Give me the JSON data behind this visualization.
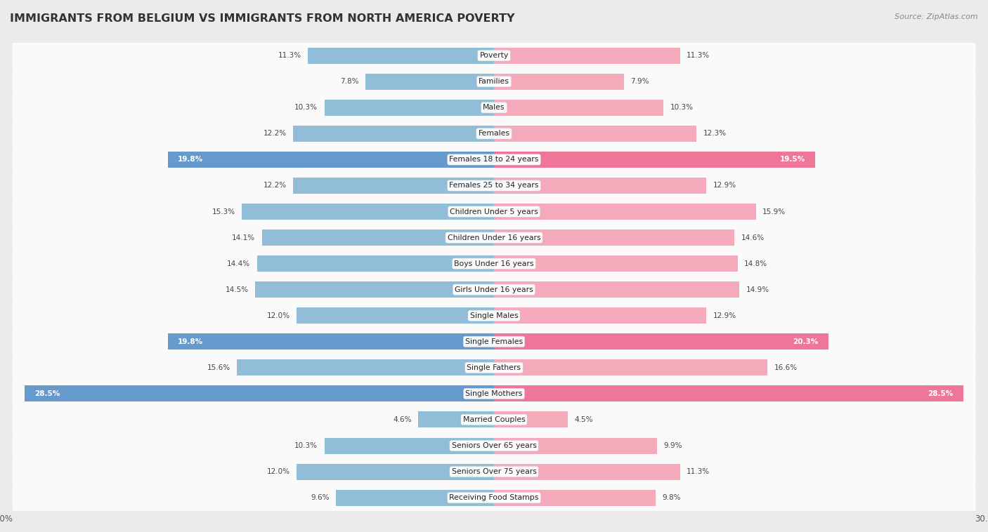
{
  "title": "IMMIGRANTS FROM BELGIUM VS IMMIGRANTS FROM NORTH AMERICA POVERTY",
  "source": "Source: ZipAtlas.com",
  "categories": [
    "Poverty",
    "Families",
    "Males",
    "Females",
    "Females 18 to 24 years",
    "Females 25 to 34 years",
    "Children Under 5 years",
    "Children Under 16 years",
    "Boys Under 16 years",
    "Girls Under 16 years",
    "Single Males",
    "Single Females",
    "Single Fathers",
    "Single Mothers",
    "Married Couples",
    "Seniors Over 65 years",
    "Seniors Over 75 years",
    "Receiving Food Stamps"
  ],
  "belgium_values": [
    11.3,
    7.8,
    10.3,
    12.2,
    19.8,
    12.2,
    15.3,
    14.1,
    14.4,
    14.5,
    12.0,
    19.8,
    15.6,
    28.5,
    4.6,
    10.3,
    12.0,
    9.6
  ],
  "north_america_values": [
    11.3,
    7.9,
    10.3,
    12.3,
    19.5,
    12.9,
    15.9,
    14.6,
    14.8,
    14.9,
    12.9,
    20.3,
    16.6,
    28.5,
    4.5,
    9.9,
    11.3,
    9.8
  ],
  "belgium_color": "#92BDD8",
  "north_america_color": "#F5AABB",
  "belgium_highlight_color": "#6699CC",
  "north_america_highlight_color": "#EE7799",
  "background_color": "#EBEBEB",
  "row_bg_color": "#FAFAFA",
  "row_alt_color": "#F0F0F0",
  "max_value": 30.0,
  "label_belgium": "Immigrants from Belgium",
  "label_north_america": "Immigrants from North America",
  "highlight_threshold_bel": 19.0,
  "highlight_threshold_nam": 19.0
}
